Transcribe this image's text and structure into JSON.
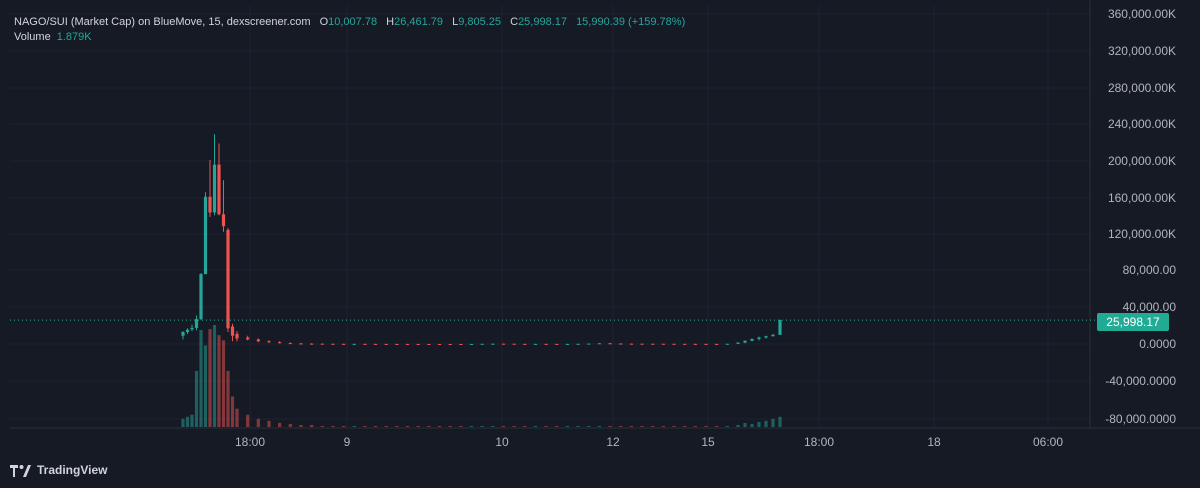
{
  "legend": {
    "title": "NAGO/SUI (Market Cap) on BlueMove, 15, dexscreener.com",
    "o_label": "O",
    "o_value": "10,007.78",
    "h_label": "H",
    "h_value": "26,461.79",
    "l_label": "L",
    "l_value": "9,805.25",
    "c_label": "C",
    "c_value": "25,998.17",
    "change": "15,990.39 (+159.78%)",
    "volume_label": "Volume",
    "volume_value": "1.879K"
  },
  "last_price_label": "25,998.17",
  "branding": {
    "name": "TradingView",
    "icon": "tradingview-logo-icon"
  },
  "colors": {
    "background": "#161a25",
    "up": "#26a69a",
    "down": "#ef5350",
    "price_line": "#22ab94",
    "axis_text": "#b2b5be"
  },
  "chart_data": {
    "type": "candlestick",
    "y_axis_labels": [
      "360,000.00K",
      "320,000.00K",
      "280,000.00K",
      "240,000.00K",
      "200,000.00K",
      "160,000.00K",
      "120,000.00K",
      "80,000.00",
      "40,000.00",
      "0.0000",
      "-40,000.0000",
      "-80,000.0000"
    ],
    "x_axis_labels": [
      "18:00",
      "9",
      "10",
      "12",
      "15",
      "18:00",
      "18",
      "06:00"
    ],
    "last_price": 25998.17,
    "grid": true,
    "candles": [
      {
        "o": 9000,
        "h": 14000,
        "l": 5000,
        "c": 13000
      },
      {
        "o": 13000,
        "h": 17000,
        "l": 11000,
        "c": 15500
      },
      {
        "o": 16000,
        "h": 21000,
        "l": 14000,
        "c": 17500
      },
      {
        "o": 17500,
        "h": 31000,
        "l": 15000,
        "c": 27000
      },
      {
        "o": 27000,
        "h": 77000,
        "l": 26000,
        "c": 76000
      },
      {
        "o": 76000,
        "h": 165000,
        "l": 76000,
        "c": 160000
      },
      {
        "o": 160000,
        "h": 200000,
        "l": 138000,
        "c": 143000
      },
      {
        "o": 143000,
        "h": 228000,
        "l": 140000,
        "c": 195000
      },
      {
        "o": 195000,
        "h": 218000,
        "l": 140000,
        "c": 141000
      },
      {
        "o": 141000,
        "h": 178000,
        "l": 122000,
        "c": 128000
      },
      {
        "o": 124000,
        "h": 126000,
        "l": 13000,
        "c": 17000
      },
      {
        "o": 19000,
        "h": 22000,
        "l": 3000,
        "c": 9000
      },
      {
        "o": 11000,
        "h": 14000,
        "l": 3000,
        "c": 6000
      },
      {
        "o": 7000,
        "h": 9000,
        "l": 4000,
        "c": 5000
      },
      {
        "o": 5000,
        "h": 6000,
        "l": 2000,
        "c": 3000
      },
      {
        "o": 3000,
        "h": 4000,
        "l": 1000,
        "c": 2000
      },
      {
        "o": 2000,
        "h": 3000,
        "l": 500,
        "c": 1000
      },
      {
        "o": 1000,
        "h": 1800,
        "l": 400,
        "c": 600
      },
      {
        "o": 600,
        "h": 1200,
        "l": 200,
        "c": 400
      },
      {
        "o": 400,
        "h": 900,
        "l": 100,
        "c": 300
      },
      {
        "o": 300,
        "h": 700,
        "l": 100,
        "c": 200
      },
      {
        "o": 200,
        "h": 500,
        "l": 50,
        "c": 150
      },
      {
        "o": 150,
        "h": 400,
        "l": 50,
        "c": 100
      },
      {
        "o": 100,
        "h": 300,
        "l": 0,
        "c": 120
      },
      {
        "o": 120,
        "h": 300,
        "l": 0,
        "c": 90
      },
      {
        "o": 90,
        "h": 250,
        "l": 0,
        "c": 60
      },
      {
        "o": 60,
        "h": 200,
        "l": 0,
        "c": 50
      },
      {
        "o": 50,
        "h": 200,
        "l": 0,
        "c": 40
      },
      {
        "o": 40,
        "h": 150,
        "l": 0,
        "c": 30
      },
      {
        "o": 30,
        "h": 150,
        "l": 0,
        "c": 20
      },
      {
        "o": 20,
        "h": 100,
        "l": 0,
        "c": 15
      },
      {
        "o": 15,
        "h": 100,
        "l": 0,
        "c": 10
      },
      {
        "o": 10,
        "h": 100,
        "l": 0,
        "c": 8
      },
      {
        "o": 8,
        "h": 100,
        "l": 0,
        "c": 5
      },
      {
        "o": 5,
        "h": 100,
        "l": 0,
        "c": 50
      },
      {
        "o": 50,
        "h": 150,
        "l": 0,
        "c": 200
      },
      {
        "o": 200,
        "h": 400,
        "l": 100,
        "c": 300
      },
      {
        "o": 300,
        "h": 500,
        "l": 100,
        "c": 250
      },
      {
        "o": 250,
        "h": 400,
        "l": 50,
        "c": 100
      },
      {
        "o": 100,
        "h": 300,
        "l": 0,
        "c": 60
      },
      {
        "o": 60,
        "h": 200,
        "l": 0,
        "c": 100
      },
      {
        "o": 100,
        "h": 250,
        "l": 0,
        "c": 80
      },
      {
        "o": 80,
        "h": 200,
        "l": 0,
        "c": 60
      },
      {
        "o": 60,
        "h": 200,
        "l": 0,
        "c": 70
      },
      {
        "o": 70,
        "h": 250,
        "l": 0,
        "c": 200
      },
      {
        "o": 200,
        "h": 500,
        "l": 100,
        "c": 450
      },
      {
        "o": 450,
        "h": 900,
        "l": 300,
        "c": 800
      },
      {
        "o": 800,
        "h": 1200,
        "l": 400,
        "c": 500
      },
      {
        "o": 500,
        "h": 800,
        "l": 200,
        "c": 350
      },
      {
        "o": 350,
        "h": 600,
        "l": 150,
        "c": 300
      },
      {
        "o": 300,
        "h": 500,
        "l": 100,
        "c": 250
      },
      {
        "o": 250,
        "h": 400,
        "l": 100,
        "c": 220
      },
      {
        "o": 220,
        "h": 400,
        "l": 100,
        "c": 200
      },
      {
        "o": 200,
        "h": 350,
        "l": 50,
        "c": 150
      },
      {
        "o": 150,
        "h": 300,
        "l": 50,
        "c": 120
      },
      {
        "o": 120,
        "h": 250,
        "l": 0,
        "c": 100
      },
      {
        "o": 100,
        "h": 250,
        "l": 0,
        "c": 90
      },
      {
        "o": 90,
        "h": 200,
        "l": 0,
        "c": 80
      },
      {
        "o": 80,
        "h": 300,
        "l": 0,
        "c": 200
      },
      {
        "o": 200,
        "h": 2000,
        "l": 100,
        "c": 1500
      },
      {
        "o": 1500,
        "h": 4000,
        "l": 1000,
        "c": 3500
      },
      {
        "o": 3500,
        "h": 6000,
        "l": 3000,
        "c": 5500
      },
      {
        "o": 5500,
        "h": 8000,
        "l": 4000,
        "c": 7000
      },
      {
        "o": 7000,
        "h": 9000,
        "l": 6000,
        "c": 8500
      },
      {
        "o": 8500,
        "h": 11000,
        "l": 8000,
        "c": 10007.78
      },
      {
        "o": 10007.78,
        "h": 26461.79,
        "l": 9805.25,
        "c": 25998.17
      }
    ],
    "volume_max": 100,
    "volumes": [
      8,
      10,
      12,
      55,
      95,
      80,
      96,
      100,
      90,
      85,
      55,
      30,
      18,
      12,
      8,
      6,
      4,
      3,
      2,
      2,
      1,
      1,
      1,
      1,
      1,
      1,
      1,
      1,
      1,
      1,
      1,
      1,
      1,
      1,
      1,
      1,
      1,
      1,
      1,
      1,
      1,
      1,
      1,
      1,
      1,
      1,
      1,
      1,
      1,
      1,
      1,
      1,
      1,
      1,
      1,
      1,
      1,
      1,
      1,
      2,
      4,
      3,
      5,
      6,
      8,
      10
    ]
  }
}
